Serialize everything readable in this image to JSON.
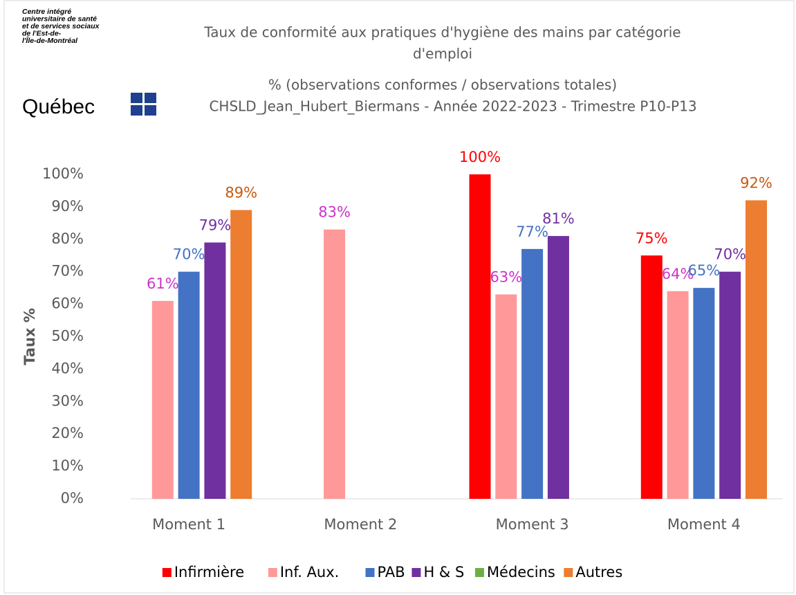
{
  "chart_data": {
    "type": "bar",
    "logo": {
      "lines": [
        "Centre intégré",
        "universitaire de santé",
        "et de services sociaux",
        "de l'Est-de-",
        "l'Île-de-Montréal"
      ],
      "name": "Québec"
    },
    "title": [
      "Taux de conformité aux pratiques d'hygiène des mains par catégorie",
      "d'emploi"
    ],
    "subtitle": [
      "% (observations conformes / observations totales)",
      "CHSLD_Jean_Hubert_Biermans - Année 2022-2023 - Trimestre P10-P13"
    ],
    "y_label": "Taux %",
    "categories": [
      "Moment 1",
      "Moment 2",
      "Moment 3",
      "Moment 4"
    ],
    "series": [
      {
        "name": "Infirmière",
        "color": "#ff0000",
        "label_color": "#ff0000",
        "values": [
          null,
          null,
          100,
          75
        ],
        "value_labels": [
          null,
          null,
          "100%",
          "75%"
        ]
      },
      {
        "name": "Inf. Aux.",
        "color": "#ff9999",
        "label_color": "#cc33cc",
        "values": [
          61,
          83,
          63,
          64
        ],
        "value_labels": [
          "61%",
          "83%",
          "63%",
          "64%"
        ]
      },
      {
        "name": "PAB",
        "color": "#4472c4",
        "label_color": "#4472c4",
        "values": [
          70,
          null,
          77,
          65
        ],
        "value_labels": [
          "70%",
          null,
          "77%",
          "65%"
        ]
      },
      {
        "name": "H & S",
        "color": "#7030a0",
        "label_color": "#7030a0",
        "values": [
          79,
          null,
          81,
          70
        ],
        "value_labels": [
          "79%",
          null,
          "81%",
          "70%"
        ]
      },
      {
        "name": "Médecins",
        "color": "#70ad47",
        "label_color": "#70ad47",
        "values": [
          null,
          null,
          null,
          null
        ],
        "value_labels": [
          null,
          null,
          null,
          null
        ]
      },
      {
        "name": "Autres",
        "color": "#ed7d31",
        "label_color": "#c55a11",
        "values": [
          89,
          null,
          null,
          92
        ],
        "value_labels": [
          "89%",
          null,
          null,
          "92%"
        ]
      }
    ],
    "ylim": [
      0,
      100
    ],
    "yticks": [
      {
        "value": 0,
        "label": "0%"
      },
      {
        "value": 10,
        "label": "10%"
      },
      {
        "value": 20,
        "label": "20%"
      },
      {
        "value": 30,
        "label": "30%"
      },
      {
        "value": 40,
        "label": "40%"
      },
      {
        "value": 50,
        "label": "50%"
      },
      {
        "value": 60,
        "label": "60%"
      },
      {
        "value": 70,
        "label": "70%"
      },
      {
        "value": 80,
        "label": "80%"
      },
      {
        "value": 90,
        "label": "90%"
      },
      {
        "value": 100,
        "label": "100%"
      }
    ],
    "legend": "bottom"
  }
}
